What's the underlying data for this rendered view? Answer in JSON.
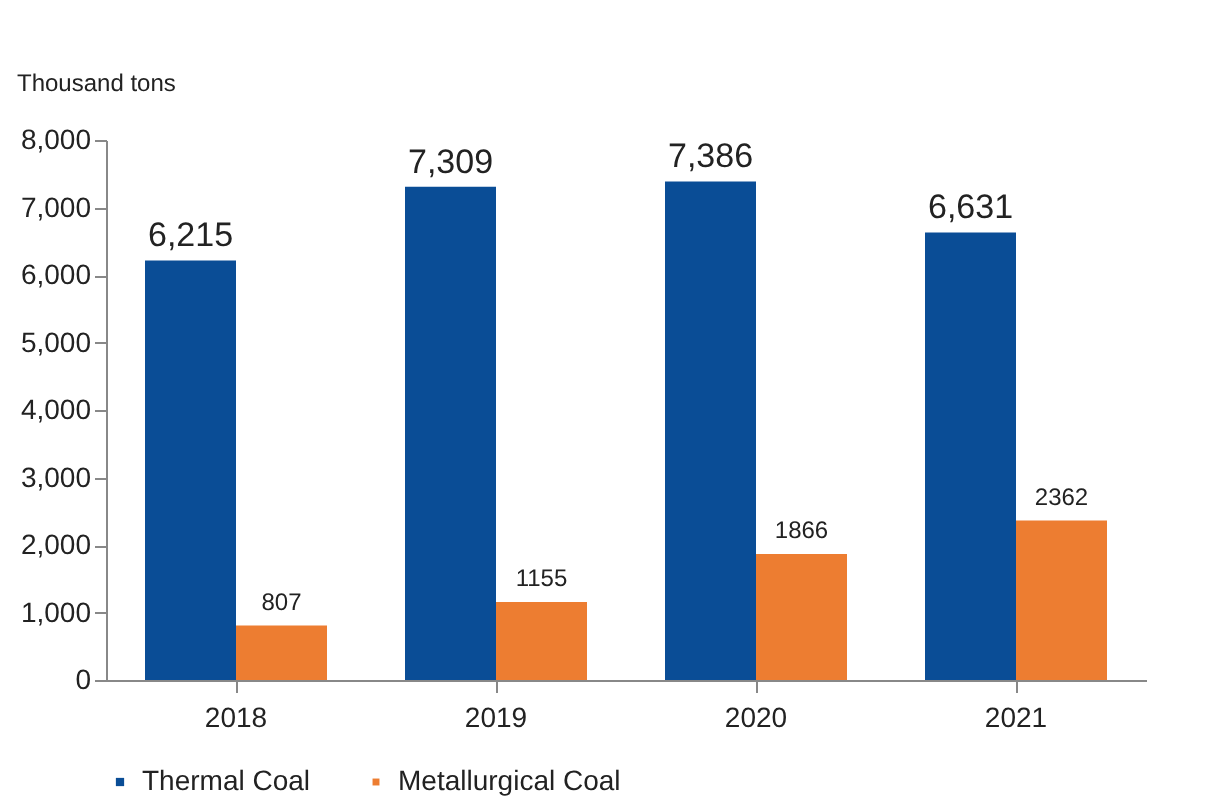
{
  "chart_data": {
    "type": "bar",
    "ylabel": "Thousand tons",
    "categories": [
      "2018",
      "2019",
      "2020",
      "2021"
    ],
    "series": [
      {
        "name": "Thermal Coal",
        "color": "#0a4d96",
        "values": [
          6215,
          7309,
          7386,
          6631
        ],
        "value_labels": [
          "6,215",
          "7,309",
          "7,386",
          "6,631"
        ]
      },
      {
        "name": "Metallurgical Coal",
        "color": "#ed7d31",
        "values": [
          807,
          1155,
          1866,
          2362
        ],
        "value_labels": [
          "807",
          "1155",
          "1866",
          "2362"
        ]
      }
    ],
    "ylim": [
      0,
      8000
    ],
    "yticks": [
      {
        "value": 0,
        "label": "0"
      },
      {
        "value": 1000,
        "label": "1,000"
      },
      {
        "value": 2000,
        "label": "2,000"
      },
      {
        "value": 3000,
        "label": "3,000"
      },
      {
        "value": 4000,
        "label": "4,000"
      },
      {
        "value": 5000,
        "label": "5,000"
      },
      {
        "value": 6000,
        "label": "6,000"
      },
      {
        "value": 7000,
        "label": "7,000"
      },
      {
        "value": 8000,
        "label": "8,000"
      }
    ],
    "grid": false,
    "legend": "bottom"
  }
}
